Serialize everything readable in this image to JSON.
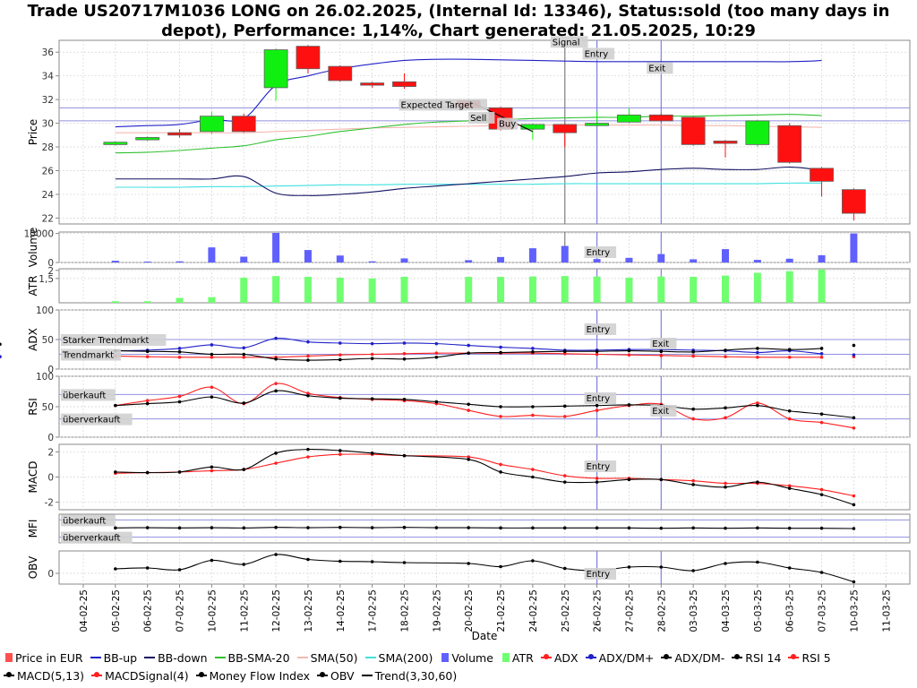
{
  "title": "Trade US20717M1036 LONG on 26.02.2025, (Internal Id: 13346), Status:sold (too many days in depot), Performance: 1,14%, Chart generated: 21.05.2025, 10:29",
  "chart_data": {
    "type": "candlestick",
    "xlabel": "Date",
    "dates": [
      "04-02-25",
      "05-02-25",
      "06-02-25",
      "07-02-25",
      "10-02-25",
      "11-02-25",
      "12-02-25",
      "13-02-25",
      "14-02-25",
      "17-02-25",
      "18-02-25",
      "19-02-25",
      "20-02-25",
      "21-02-25",
      "24-02-25",
      "25-02-25",
      "26-02-25",
      "27-02-25",
      "28-02-25",
      "03-03-25",
      "04-03-25",
      "05-03-25",
      "06-03-25",
      "07-03-25",
      "10-03-25",
      "11-03-25"
    ],
    "panels": {
      "price": {
        "ylabel": "Price",
        "ylim": [
          21.5,
          37.0
        ],
        "yticks": [
          22,
          24,
          26,
          28,
          30,
          32,
          34,
          36
        ],
        "candles": [
          {
            "date": "05-02-25",
            "open": 28.2,
            "close": 28.4,
            "high": 28.5,
            "low": 28.1
          },
          {
            "date": "06-02-25",
            "open": 28.6,
            "close": 28.8,
            "high": 28.9,
            "low": 28.5
          },
          {
            "date": "07-02-25",
            "open": 29.2,
            "close": 29.0,
            "high": 29.5,
            "low": 28.8
          },
          {
            "date": "10-02-25",
            "open": 29.3,
            "close": 30.6,
            "high": 31.0,
            "low": 29.1
          },
          {
            "date": "11-02-25",
            "open": 30.6,
            "close": 29.3,
            "high": 30.8,
            "low": 29.2
          },
          {
            "date": "12-02-25",
            "open": 33.0,
            "close": 36.2,
            "high": 36.3,
            "low": 31.9
          },
          {
            "date": "13-02-25",
            "open": 36.5,
            "close": 34.6,
            "high": 36.6,
            "low": 34.2
          },
          {
            "date": "14-02-25",
            "open": 34.8,
            "close": 33.6,
            "high": 34.9,
            "low": 33.5
          },
          {
            "date": "17-02-25",
            "open": 33.4,
            "close": 33.3,
            "high": 33.5,
            "low": 33.0
          },
          {
            "date": "18-02-25",
            "open": 33.5,
            "close": 33.1,
            "high": 34.2,
            "low": 32.9
          },
          {
            "date": "20-02-25",
            "open": 31.9,
            "close": 31.3,
            "high": 32.0,
            "low": 31.2
          },
          {
            "date": "21-02-25",
            "open": 31.3,
            "close": 29.5,
            "high": 31.4,
            "low": 29.4
          },
          {
            "date": "24-02-25",
            "open": 29.5,
            "close": 29.9,
            "high": 30.0,
            "low": 28.6
          },
          {
            "date": "25-02-25",
            "open": 29.9,
            "close": 29.2,
            "high": 30.0,
            "low": 28.0
          },
          {
            "date": "26-02-25",
            "open": 29.8,
            "close": 30.0,
            "high": 31.0,
            "low": 29.7
          },
          {
            "date": "27-02-25",
            "open": 30.1,
            "close": 30.7,
            "high": 31.3,
            "low": 30.0
          },
          {
            "date": "28-02-25",
            "open": 30.7,
            "close": 30.2,
            "high": 30.8,
            "low": 30.1
          },
          {
            "date": "03-03-25",
            "open": 30.5,
            "close": 28.2,
            "high": 30.6,
            "low": 28.1
          },
          {
            "date": "04-03-25",
            "open": 28.5,
            "close": 28.3,
            "high": 28.6,
            "low": 27.1
          },
          {
            "date": "05-03-25",
            "open": 28.2,
            "close": 30.2,
            "high": 30.3,
            "low": 28.0
          },
          {
            "date": "06-03-25",
            "open": 29.8,
            "close": 26.7,
            "high": 30.0,
            "low": 26.6
          },
          {
            "date": "07-03-25",
            "open": 26.2,
            "close": 25.1,
            "high": 26.3,
            "low": 23.8
          },
          {
            "date": "10-03-25",
            "open": 24.4,
            "close": 22.4,
            "high": 24.5,
            "low": 21.8
          }
        ],
        "bb_up": [
          29.7,
          29.8,
          29.9,
          30.3,
          30.4,
          33.2,
          34.0,
          34.6,
          35.0,
          35.3,
          35.4,
          35.4,
          35.35,
          35.3,
          35.25,
          35.2,
          35.2,
          35.2,
          35.2,
          35.2,
          35.2,
          35.2,
          35.3,
          35.7,
          36.4
        ],
        "bb_down": [
          25.3,
          25.3,
          25.3,
          25.3,
          25.5,
          24.1,
          23.9,
          24.0,
          24.2,
          24.5,
          24.7,
          24.9,
          25.1,
          25.3,
          25.5,
          25.8,
          25.9,
          26.1,
          26.2,
          26.1,
          26.1,
          26.3,
          26.0,
          25.3,
          23.9
        ],
        "bb_sma20": [
          27.5,
          27.55,
          27.7,
          27.9,
          28.1,
          28.6,
          28.9,
          29.3,
          29.6,
          29.9,
          30.1,
          30.2,
          30.3,
          30.4,
          30.45,
          30.5,
          30.5,
          30.6,
          30.6,
          30.65,
          30.7,
          30.75,
          30.65,
          30.5,
          30.1
        ],
        "sma50": [
          29.2,
          29.2,
          29.2,
          29.2,
          29.2,
          29.3,
          29.4,
          29.5,
          29.6,
          29.65,
          29.7,
          29.75,
          29.8,
          29.85,
          29.85,
          29.85,
          29.85,
          29.85,
          29.8,
          29.8,
          29.75,
          29.7,
          29.65,
          29.5,
          29.3
        ],
        "sma200": [
          24.6,
          24.6,
          24.6,
          24.65,
          24.65,
          24.7,
          24.75,
          24.8,
          24.8,
          24.85,
          24.85,
          24.85,
          24.85,
          24.85,
          24.9,
          24.9,
          24.9,
          24.9,
          24.9,
          24.9,
          24.9,
          24.95,
          24.95,
          24.9,
          24.9
        ],
        "hlines": [
          31.3,
          30.2
        ],
        "signal_date": "25-02-25",
        "entry_date": "26-02-25",
        "exit_date": "28-02-25",
        "annotations": [
          {
            "text": "Signal",
            "date": "25-02-25",
            "y": 36.6
          },
          {
            "text": "Entry",
            "date": "26-02-25",
            "y": 35.6
          },
          {
            "text": "Exit",
            "date": "28-02-25",
            "y": 34.4
          },
          {
            "text": "Expected Target",
            "date": "18-02-25",
            "y": 31.3
          },
          {
            "text": "Sell",
            "date": "20-02-25",
            "y": 30.2
          },
          {
            "text": "Buy",
            "date": "21-02-25",
            "y": 29.7
          }
        ],
        "trend": [
          {
            "date": "20-02-25",
            "value": 31.9
          },
          {
            "date": "24-02-25",
            "value": 29.3
          }
        ]
      },
      "volume": {
        "ylabel": "Volume",
        "ylim": [
          0,
          10500
        ],
        "yticks": [
          0,
          10000
        ],
        "values": [
          600,
          300,
          400,
          5200,
          2000,
          10200,
          4300,
          2400,
          400,
          1400,
          0,
          800,
          1900,
          4900,
          5700,
          1200,
          1600,
          2900,
          1100,
          4600,
          900,
          1300,
          2500,
          10000
        ],
        "dates": [
          "05-02-25",
          "06-02-25",
          "07-02-25",
          "10-02-25",
          "11-02-25",
          "12-02-25",
          "13-02-25",
          "14-02-25",
          "17-02-25",
          "18-02-25",
          "19-02-25",
          "20-02-25",
          "21-02-25",
          "24-02-25",
          "25-02-25",
          "26-02-25",
          "27-02-25",
          "28-02-25",
          "03-03-25",
          "04-03-25",
          "05-03-25",
          "06-03-25",
          "07-03-25",
          "10-03-25"
        ],
        "annotation": "Entry"
      },
      "atr": {
        "ylabel": "ATR",
        "ylim": [
          0,
          2.1
        ],
        "yticks": [
          1.5,
          2
        ],
        "ytick_labels": [
          "1,5",
          "2"
        ],
        "values": [
          0.1,
          0.1,
          0.3,
          0.35,
          1.55,
          1.65,
          1.6,
          1.55,
          1.5,
          1.6,
          1.6,
          1.6,
          1.62,
          1.65,
          1.62,
          1.55,
          1.62,
          1.6,
          1.68,
          1.85,
          1.95,
          2.05
        ],
        "dates": [
          "05-02-25",
          "06-02-25",
          "07-02-25",
          "10-02-25",
          "11-02-25",
          "12-02-25",
          "13-02-25",
          "14-02-25",
          "17-02-25",
          "18-02-25",
          "20-02-25",
          "21-02-25",
          "24-02-25",
          "25-02-25",
          "26-02-25",
          "27-02-25",
          "28-02-25",
          "03-03-25",
          "04-03-25",
          "05-03-25",
          "06-03-25",
          "07-03-25"
        ]
      },
      "adx": {
        "ylabel": "ADX",
        "ylim": [
          0,
          100
        ],
        "yticks": [
          0,
          50,
          100
        ],
        "hlines": [
          {
            "value": 50,
            "label": "Starker Trendmarkt"
          },
          {
            "value": 25,
            "label": "Trendmarkt"
          }
        ],
        "annotations": [
          "Entry",
          "Exit"
        ],
        "adx": [
          22,
          21,
          20,
          20,
          20,
          20,
          22,
          24,
          25,
          26,
          27,
          27,
          27,
          27,
          26,
          25,
          24,
          23,
          22,
          21,
          20,
          20,
          20,
          21,
          21
        ],
        "adx_dm_plus": [
          31,
          32,
          35,
          41,
          36,
          52,
          46,
          44,
          43,
          44,
          43,
          40,
          37,
          35,
          32,
          32,
          33,
          33,
          32,
          31,
          28,
          31,
          26,
          24,
          21
        ],
        "adx_dm_minus": [
          31,
          30,
          29,
          25,
          25,
          17,
          15,
          16,
          18,
          17,
          20,
          27,
          28,
          29,
          30,
          30,
          31,
          30,
          29,
          32,
          35,
          33,
          35,
          40,
          42
        ]
      },
      "rsi": {
        "ylabel": "RSI",
        "ylim": [
          0,
          100
        ],
        "yticks": [
          0,
          50,
          100
        ],
        "hlines": [
          {
            "value": 70,
            "label": "überkauft"
          },
          {
            "value": 30,
            "label": "überverkauft"
          }
        ],
        "annotations": [
          "Entry",
          "Exit"
        ],
        "rsi14": [
          52,
          55,
          58,
          66,
          56,
          76,
          68,
          64,
          63,
          62,
          58,
          54,
          50,
          50,
          51,
          52,
          53,
          52,
          46,
          48,
          52,
          43,
          38,
          32
        ],
        "rsi5": [
          52,
          60,
          67,
          82,
          55,
          88,
          72,
          65,
          62,
          60,
          55,
          44,
          34,
          36,
          34,
          44,
          52,
          54,
          30,
          32,
          56,
          30,
          24,
          15
        ]
      },
      "macd": {
        "ylabel": "MACD",
        "ylim": [
          -2.6,
          2.6
        ],
        "yticks": [
          -2,
          0,
          2
        ],
        "annotation": "Entry",
        "macd": [
          0.4,
          0.35,
          0.4,
          0.8,
          0.6,
          1.9,
          2.2,
          2.1,
          1.9,
          1.7,
          1.4,
          0.4,
          0.0,
          -0.4,
          -0.4,
          -0.2,
          -0.2,
          -0.6,
          -0.8,
          -0.4,
          -0.9,
          -1.4,
          -2.2
        ],
        "signal": [
          0.3,
          0.35,
          0.4,
          0.5,
          0.6,
          1.1,
          1.6,
          1.8,
          1.8,
          1.7,
          1.6,
          1.0,
          0.6,
          0.1,
          -0.1,
          -0.1,
          -0.2,
          -0.3,
          -0.5,
          -0.5,
          -0.7,
          -1.0,
          -1.5
        ]
      },
      "mfi": {
        "ylabel": "MFI",
        "ylim": [
          0,
          100
        ],
        "hlines": [
          {
            "value": 80,
            "label": "überkauft"
          },
          {
            "value": 20,
            "label": "überverkauft"
          }
        ],
        "values": [
          52,
          53,
          52,
          53,
          52,
          54,
          53,
          54,
          53,
          54,
          53,
          53,
          52,
          52,
          52,
          52,
          52,
          51,
          52,
          51,
          52,
          51,
          51,
          50
        ]
      },
      "obv": {
        "ylabel": "OBV",
        "yticks": [
          0
        ],
        "annotation": "Entry",
        "values": [
          1000,
          1200,
          800,
          2900,
          2000,
          4200,
          3100,
          2700,
          2600,
          2400,
          2200,
          1500,
          2800,
          1100,
          600,
          1400,
          1400,
          600,
          2200,
          2500,
          1200,
          200,
          -1900
        ]
      }
    },
    "legend": [
      {
        "label": "Price in EUR",
        "color": "#ff5050",
        "kind": "box"
      },
      {
        "label": "BB-up",
        "color": "#2020c8",
        "kind": "line"
      },
      {
        "label": "BB-down",
        "color": "#101060",
        "kind": "line"
      },
      {
        "label": "BB-SMA-20",
        "color": "#30c030",
        "kind": "line"
      },
      {
        "label": "SMA(50)",
        "color": "#f4b8b0",
        "kind": "line"
      },
      {
        "label": "SMA(200)",
        "color": "#40e0e0",
        "kind": "line"
      },
      {
        "label": "Volume",
        "color": "#6060ff",
        "kind": "box"
      },
      {
        "label": "ATR",
        "color": "#70ff70",
        "kind": "box"
      },
      {
        "label": "ADX",
        "color": "#ff2020",
        "kind": "dotline"
      },
      {
        "label": "ADX/DM+",
        "color": "#2020c8",
        "kind": "dotline"
      },
      {
        "label": "ADX/DM-",
        "color": "#000000",
        "kind": "dotline"
      },
      {
        "label": "RSI 14",
        "color": "#000000",
        "kind": "dotline"
      },
      {
        "label": "RSI 5",
        "color": "#ff2020",
        "kind": "dotline"
      },
      {
        "label": "MACD(5,13)",
        "color": "#000000",
        "kind": "dotline"
      },
      {
        "label": "MACDSignal(4)",
        "color": "#ff2020",
        "kind": "dotline"
      },
      {
        "label": "Money Flow Index",
        "color": "#000000",
        "kind": "dotline"
      },
      {
        "label": "OBV",
        "color": "#000000",
        "kind": "dotline"
      },
      {
        "label": "Trend(3,30,60)",
        "color": "#000000",
        "kind": "line"
      }
    ],
    "colors": {
      "up": "#10f010",
      "down": "#ff1010",
      "entry": "#8080e0",
      "signal": "#808080",
      "grid": "#d4d4d4"
    }
  }
}
